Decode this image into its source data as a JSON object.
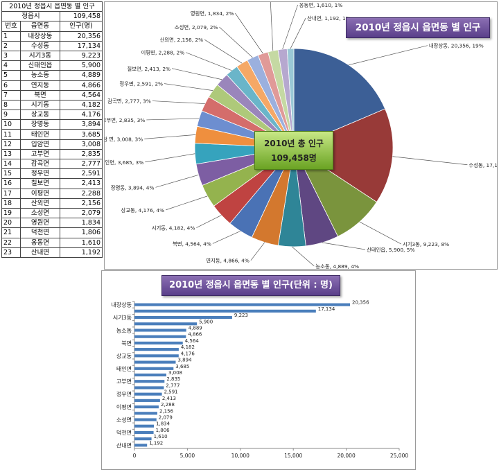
{
  "table": {
    "title": "2010년 정읍시 읍면동 별 인구",
    "total_label": "정읍시",
    "total_value": "109,458",
    "headers": [
      "번호",
      "읍면동",
      "인구(명)"
    ],
    "rows": [
      [
        "1",
        "내장상동",
        "20,356"
      ],
      [
        "2",
        "수성동",
        "17,134"
      ],
      [
        "3",
        "시기3동",
        "9,223"
      ],
      [
        "4",
        "신태인읍",
        "5,900"
      ],
      [
        "5",
        "농소동",
        "4,889"
      ],
      [
        "6",
        "연지동",
        "4,866"
      ],
      [
        "7",
        "북면",
        "4,564"
      ],
      [
        "8",
        "시기동",
        "4,182"
      ],
      [
        "9",
        "상교동",
        "4,176"
      ],
      [
        "10",
        "장명동",
        "3,894"
      ],
      [
        "11",
        "태인면",
        "3,685"
      ],
      [
        "12",
        "입암면",
        "3,008"
      ],
      [
        "13",
        "고부면",
        "2,835"
      ],
      [
        "14",
        "감곡면",
        "2,777"
      ],
      [
        "15",
        "정우면",
        "2,591"
      ],
      [
        "16",
        "칠보면",
        "2,413"
      ],
      [
        "17",
        "이평면",
        "2,288"
      ],
      [
        "18",
        "산외면",
        "2,156"
      ],
      [
        "19",
        "소성면",
        "2,079"
      ],
      [
        "20",
        "영원면",
        "1,834"
      ],
      [
        "21",
        "덕천면",
        "1,806"
      ],
      [
        "22",
        "옹동면",
        "1,610"
      ],
      [
        "23",
        "산내면",
        "1,192"
      ]
    ]
  },
  "chart_data": [
    {
      "type": "pie",
      "title": "2010년 정읍시 읍면동 별 인구",
      "center_box": {
        "line1": "2010년 총 인구",
        "line2": "109,458명"
      },
      "categories": [
        "내장상동",
        "수성동",
        "시기3동",
        "신태인읍",
        "농소동",
        "연지동",
        "북면",
        "시기동",
        "상교동",
        "장명동",
        "태인면",
        "입암면",
        "고부면",
        "감곡면",
        "정우면",
        "칠보면",
        "이평면",
        "산외면",
        "소성면",
        "영원면",
        "덕천면",
        "옹동면",
        "산내면"
      ],
      "values": [
        20356,
        17134,
        9223,
        5900,
        4889,
        4866,
        4564,
        4182,
        4176,
        3894,
        3685,
        3008,
        2835,
        2777,
        2591,
        2413,
        2288,
        2156,
        2079,
        1834,
        1806,
        1610,
        1192
      ],
      "labels": [
        "내장상동, 20,356, 19%",
        "수성동, 17,134, 16%",
        "시기3동, 9,223, 8%",
        "신태인읍, 5,900, 5%",
        "농소동, 4,889, 4%",
        "연지동, 4,866, 4%",
        "북면, 4,564, 4%",
        "시기동, 4,182, 4%",
        "상교동, 4,176, 4%",
        "장명동, 3,894, 4%",
        "태인면, 3,685, 3%",
        "입암 면, 3,008, 3%",
        "고부면, 2,835, 3%",
        "감곡면, 2,777, 3%",
        "정우면, 2,591, 2%",
        "칠보면, 2,413, 2%",
        "이평면, 2,288, 2%",
        "산외면, 2,156, 2%",
        "소성면, 2,079, 2%",
        "영원면, 1,834, 2%",
        "덕천 면, 1,806, 2%",
        "옹동면, 1,610, 1%",
        "산내면, 1,192, 1%"
      ],
      "colors": [
        "#3c5f96",
        "#983a38",
        "#7a943d",
        "#5f4782",
        "#2f8597",
        "#d3782e",
        "#4a72b5",
        "#bf4341",
        "#94b34e",
        "#7d5ea3",
        "#36a3bd",
        "#ef8f3e",
        "#6d8ed0",
        "#d46d6b",
        "#aec97a",
        "#9a86bb",
        "#6ab5c9",
        "#f5a866",
        "#9bb0de",
        "#e09a98",
        "#c5d9a3",
        "#b6a8cf",
        "#9ac8d6"
      ],
      "legend": "none"
    },
    {
      "type": "bar",
      "orientation": "horizontal",
      "title": "2010년 정읍시 읍면동 별 인구(단위 : 명)",
      "categories": [
        "내장상동",
        "수성동",
        "시기3동",
        "신태인읍",
        "농소동",
        "연지동",
        "북면",
        "시기동",
        "상교동",
        "장명동",
        "태인면",
        "입암면",
        "고부면",
        "감곡면",
        "정우면",
        "칠보면",
        "이평면",
        "산외면",
        "소성면",
        "영원면",
        "덕천면",
        "옹동면",
        "산내면"
      ],
      "shown_category_labels": [
        "내장상동",
        "",
        "시기3동",
        "",
        "농소동",
        "",
        "북면",
        "",
        "상교동",
        "",
        "태인면",
        "",
        "고부면",
        "",
        "정우면",
        "",
        "이평면",
        "",
        "소성면",
        "",
        "덕천면",
        "",
        "산내면"
      ],
      "values": [
        20356,
        17134,
        9223,
        5900,
        4889,
        4866,
        4564,
        4182,
        4176,
        3894,
        3685,
        3008,
        2835,
        2777,
        2591,
        2413,
        2288,
        2156,
        2079,
        1834,
        1806,
        1610,
        1192
      ],
      "value_labels": [
        "20,356",
        "17,134",
        "9,223",
        "5,900",
        "4,889",
        "4,866",
        "4,564",
        "4,182",
        "4,176",
        "3,894",
        "3,685",
        "3,008",
        "2,835",
        "2,777",
        "2,591",
        "2,413",
        "2,288",
        "2,156",
        "2,079",
        "1,834",
        "1,806",
        "1,610",
        "1,192"
      ],
      "xlim": [
        0,
        25000
      ],
      "xticks": [
        "0",
        "5,000",
        "10,000",
        "15,000",
        "20,000",
        "25,000"
      ],
      "bar_color": "#4a7ebb",
      "legend": "none"
    }
  ]
}
